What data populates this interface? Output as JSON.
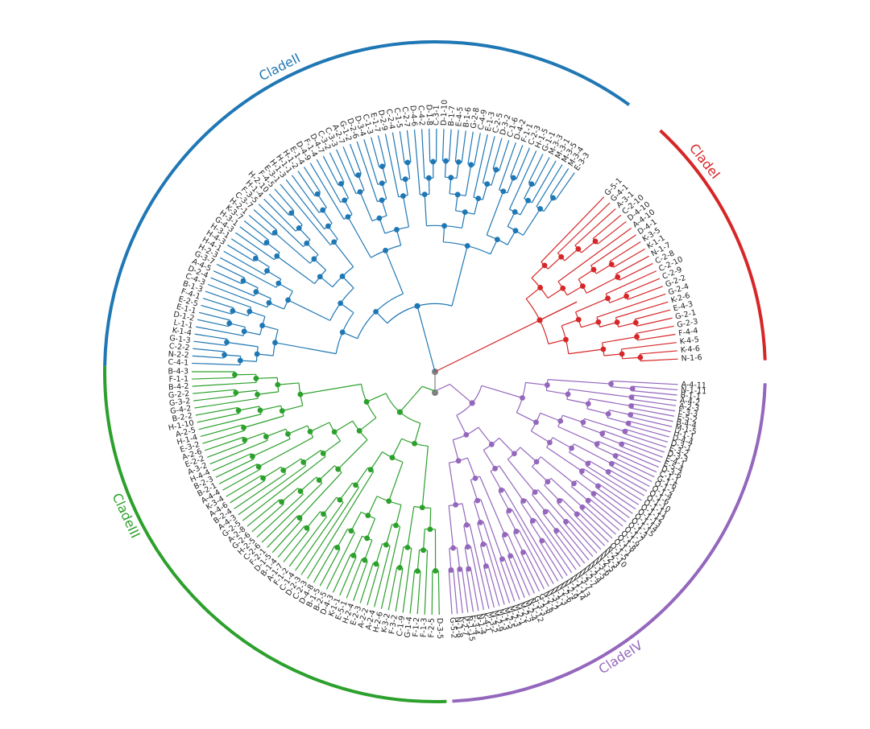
{
  "figure": {
    "root_color": "#808080"
  },
  "clades": [
    {
      "name": "CladeI",
      "color": "#d62728",
      "tips": [
        "G-5-1",
        "G-4-1",
        "A-3-1",
        "C-2-10",
        "D-4-10",
        "A-4-10",
        "D-4-1",
        "K-3-5",
        "K-1-1",
        "N-1-7",
        "C-2-8",
        "C-2-10",
        "C-2-9",
        "G-2-2",
        "G-2-4",
        "K-2-6",
        "E-4-3",
        "G-2-1",
        "G-2-3",
        "F-4-4",
        "K-4-5",
        "K-4-6",
        "N-1-6"
      ]
    },
    {
      "name": "CladeII",
      "color": "#1f77b4",
      "tips": [
        "C-4-1",
        "N-2-2",
        "C-2-2",
        "G-1-3",
        "K-1-4",
        "L-1-1",
        "D-1-2",
        "E-1-1",
        "E-2-5",
        "F-4-1",
        "B-1-3",
        "C-4-3",
        "D-2-4",
        "A-4-5",
        "G-3-7",
        "H-2-3",
        "H-4-1",
        "H-4-3",
        "H-3-1",
        "G-4-3",
        "H-3-1",
        "K-3-7",
        "H-2-1",
        "C-3-7",
        "F-3-5",
        "H-1-4",
        "H-2-10",
        "F-4-5",
        "E-3-1",
        "H-1-3",
        "H-1-1",
        "H-1-2",
        "E-1-4",
        "D-4-9",
        "F-1-4",
        "D-4-7",
        "C-3-2",
        "C-3-3",
        "A-2-7",
        "G-1-2",
        "D-2-6",
        "D-3-4",
        "C-1-3",
        "E-1-7",
        "D-2-9",
        "C-2-4",
        "C-1-5",
        "C-2-7",
        "D-4-6",
        "C-4-2",
        "D-1-8",
        "C-3-1",
        "D-1-10",
        "B-1-7",
        "E-4-5",
        "B-1-6",
        "G-2-8",
        "C-4-9",
        "E-1-3",
        "C-2-5",
        "D-3-2",
        "C-1-6",
        "D-4-2",
        "F-1-1",
        "C-2-3",
        "H-1-5",
        "G-1-1",
        "M-3-3",
        "M-3-1",
        "M-3-5",
        "M-3-4",
        "E-3-3"
      ]
    },
    {
      "name": "CladeIII",
      "color": "#2ca02c",
      "tips": [
        "D-3-5",
        "F-2-5",
        "F-1-3",
        "F-1-2",
        "G-1-4",
        "C-1-9",
        "F-3-2",
        "K-3-2",
        "H-2-6",
        "A-2-4",
        "A-2-2",
        "E-2-3",
        "H-2-4",
        "E-5-1",
        "K-1-1",
        "D-4-3",
        "B-2-5",
        "B-1-5",
        "D-4-8",
        "C-2-3",
        "D-2-3",
        "C-1-4",
        "F-1-2",
        "A-1-7",
        "B-1-4",
        "D-1-5",
        "F-2-1",
        "C-2-6",
        "H-2-5",
        "G-2-6",
        "A-2-8",
        "G-2-5",
        "A-4-3",
        "B-2-4",
        "A-4-6",
        "K-3-4",
        "A-4-4",
        "B-2-1",
        "B-2-3",
        "H-4-4",
        "A-3-2",
        "E-2-2",
        "A-2-6",
        "E-3-2",
        "H-1-4",
        "A-2-5",
        "H-1-10",
        "B-2-2",
        "G-4-2",
        "G-3-2",
        "G-2-2",
        "B-4-2",
        "F-1-1",
        "B-4-3"
      ]
    },
    {
      "name": "CladeIV",
      "color": "#9467bd",
      "tips": [
        "A-4-11",
        "N-1-11",
        "B-1-1",
        "A-4-2",
        "A-2-3",
        "F-3-3",
        "E-5-2",
        "B-4-4",
        "M-1-5",
        "H-1-1",
        "D-4-4",
        "D-3-1",
        "E-3-2",
        "D-3-3",
        "E-4-1",
        "E-5-4",
        "D-3-6",
        "C-1-1",
        "G-1-6",
        "O-1-2",
        "O-1-4",
        "O-1-6",
        "O-1-10",
        "O-1-11",
        "O-1-12",
        "O-1-13",
        "O-1-14",
        "O-1-15",
        "O-1-3",
        "O-1-7",
        "O-1-9",
        "O-1-8",
        "O-1-1",
        "O-1-5",
        "N-2-10",
        "N-2-3",
        "N-2-5",
        "N-3-6",
        "N-1-5",
        "N-2-4",
        "N-2-7",
        "N-3-7",
        "N-1-13",
        "N-1-14",
        "N-2-9",
        "N-2-6",
        "N-1-3",
        "N-3-1",
        "N-2-2",
        "G-1-8",
        "G-3-3",
        "N-1-12",
        "M-2-4",
        "M-2-2",
        "M-2-1",
        "M-2-3",
        "M-2-5",
        "M-1-3",
        "M-2-9",
        "M-3-2",
        "K-4-1",
        "N-1-4",
        "E-3-4",
        "N-1-15",
        "K-2-7",
        "N-1-8",
        "G-5-2"
      ]
    }
  ]
}
